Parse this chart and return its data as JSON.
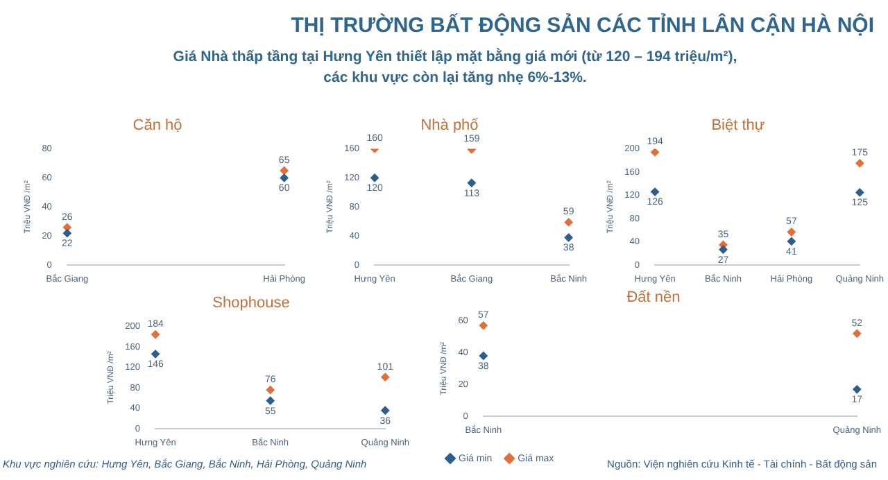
{
  "chart_data": [
    {
      "type": "scatter",
      "title": "Căn hộ",
      "ylabel": "Triệu VNĐ /m²",
      "categories": [
        "Bắc Giang",
        "Hải Phòng"
      ],
      "series": [
        {
          "color": "#2e5f8a",
          "values": [
            22,
            60
          ]
        },
        {
          "color": "#e0703a",
          "values": [
            26,
            65
          ]
        }
      ],
      "ylim": [
        0,
        80
      ],
      "yticks": [
        0,
        20,
        40,
        60,
        80
      ],
      "data_labels": true,
      "marker": "diamond",
      "legend": false,
      "grid": false,
      "annotations": [
        "THỊ TRƯỜNG BẤT ĐỘNG SẢN CÁC TỈNH LÂN CẬN HÀ NỘI",
        "Giá Nhà thấp tầng tại Hưng Yên thiết lập mặt bằng giá mới (từ 120 – 194 triệu/m²), các khu vực còn lại tăng nhẹ 6%-13%."
      ]
    },
    {
      "type": "scatter",
      "title": "Nhà phố",
      "ylabel": "Triệu VNĐ /m²",
      "categories": [
        "Hưng Yên",
        "Bắc Giang",
        "Bắc Ninh"
      ],
      "series": [
        {
          "color": "#2e5f8a",
          "values": [
            120,
            113,
            38
          ]
        },
        {
          "color": "#e0703a",
          "values": [
            160,
            159,
            59
          ]
        }
      ],
      "ylim": [
        0,
        160
      ],
      "yticks": [
        0,
        40,
        80,
        120,
        160
      ],
      "data_labels": true,
      "marker": "diamond",
      "legend": false,
      "grid": false
    },
    {
      "type": "scatter",
      "title": "Biệt thự",
      "ylabel": "Triệu VNĐ /m²",
      "categories": [
        "Hưng Yên",
        "Bắc Ninh",
        "Hải Phòng",
        "Quảng Ninh"
      ],
      "series": [
        {
          "color": "#2e5f8a",
          "values": [
            126,
            27,
            41,
            125
          ]
        },
        {
          "color": "#e0703a",
          "values": [
            194,
            35,
            57,
            175
          ]
        }
      ],
      "ylim": [
        0,
        200
      ],
      "yticks": [
        0,
        40,
        80,
        120,
        160,
        200
      ],
      "data_labels": true,
      "marker": "diamond",
      "legend": false,
      "grid": false
    },
    {
      "type": "scatter",
      "title": "Shophouse",
      "ylabel": "Triệu VNĐ /m²",
      "categories": [
        "Hưng Yên",
        "Bắc Ninh",
        "Quảng Ninh"
      ],
      "series": [
        {
          "color": "#2e5f8a",
          "values": [
            146,
            55,
            36
          ]
        },
        {
          "color": "#e0703a",
          "values": [
            184,
            76,
            101
          ]
        }
      ],
      "ylim": [
        0,
        200
      ],
      "yticks": [
        0,
        40,
        80,
        120,
        160,
        200
      ],
      "data_labels": true,
      "marker": "diamond",
      "legend": false,
      "grid": false
    },
    {
      "type": "scatter",
      "title": "Đất nền",
      "ylabel": "Triệu VNĐ /m²",
      "categories": [
        "Bắc Ninh",
        "Quảng Ninh"
      ],
      "series": [
        {
          "name": "Giá min",
          "color": "#2e5f8a",
          "values": [
            38,
            17
          ]
        },
        {
          "name": "Giá max",
          "color": "#e0703a",
          "values": [
            57,
            52
          ]
        }
      ],
      "ylim": [
        0,
        60
      ],
      "yticks": [
        0,
        20,
        40,
        60
      ],
      "data_labels": true,
      "marker": "diamond",
      "legend": "bottom left",
      "grid": false,
      "annotations": [
        "Khu vực nghiên cứu: Hưng Yên, Bắc Giang, Bắc Ninh, Hải Phòng, Quảng Ninh",
        "Nguồn: Viện nghiên cứu Kinh tế - Tài chính - Bất động sản"
      ]
    }
  ]
}
